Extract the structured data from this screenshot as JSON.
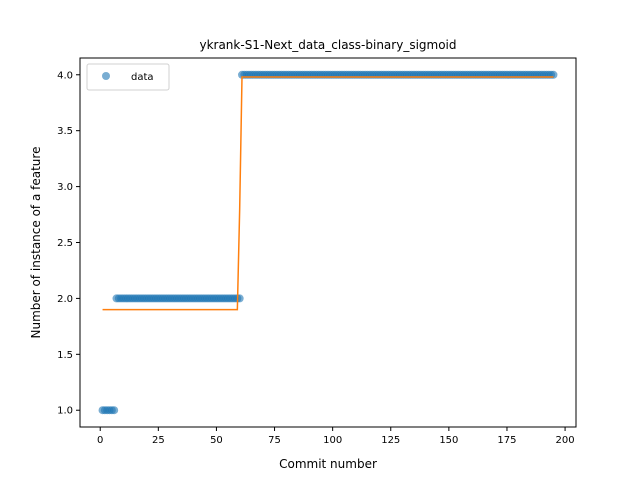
{
  "chart_data": {
    "type": "scatter",
    "title": "ykrank-S1-Next_data_class-binary_sigmoid",
    "xlabel": "Commit number",
    "ylabel": "Number of instance of a feature",
    "xlim": [
      -8.7,
      204.7
    ],
    "ylim": [
      0.85,
      4.15
    ],
    "xticks": [
      0,
      25,
      50,
      75,
      100,
      125,
      150,
      175,
      200
    ],
    "yticks": [
      1.0,
      1.5,
      2.0,
      2.5,
      3.0,
      3.5,
      4.0
    ],
    "xtick_labels": [
      "0",
      "25",
      "50",
      "75",
      "100",
      "125",
      "150",
      "175",
      "200"
    ],
    "ytick_labels": [
      "1.0",
      "1.5",
      "2.0",
      "2.5",
      "3.0",
      "3.5",
      "4.0"
    ],
    "legend": {
      "position": "top-left",
      "entries": [
        "data"
      ]
    },
    "colors": {
      "data": "#1f77b4",
      "fit": "#ff7f0e"
    },
    "series": [
      {
        "name": "data",
        "kind": "points",
        "segments": [
          {
            "x_from": 1,
            "x_to": 6,
            "y": 1.0
          },
          {
            "x_from": 7,
            "x_to": 60,
            "y": 2.0
          },
          {
            "x_from": 61,
            "x_to": 195,
            "y": 4.0
          }
        ]
      },
      {
        "kind": "line",
        "x": [
          1,
          59,
          60,
          61,
          195
        ],
        "y": [
          1.9,
          1.9,
          2.8,
          3.98,
          3.98
        ]
      }
    ]
  }
}
